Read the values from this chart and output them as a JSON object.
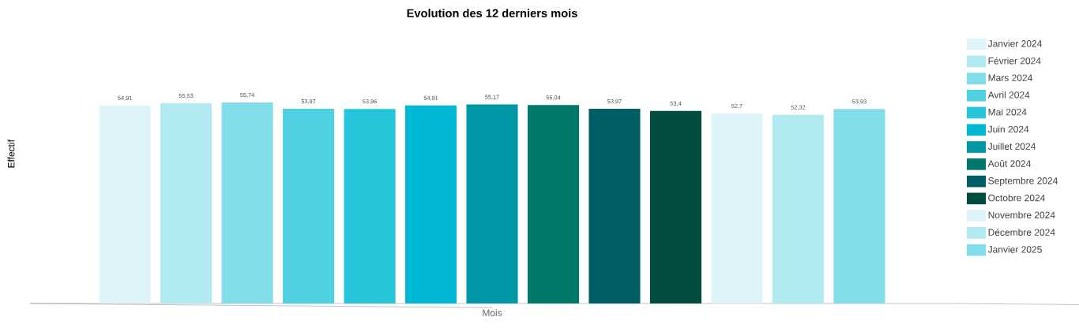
{
  "chart_data": {
    "type": "bar",
    "title": "Evolution des 12 derniers mois",
    "xlabel": "Mois",
    "ylabel": "Effectif",
    "categories": [
      null
    ],
    "series": [
      {
        "name": "Janvier 2024",
        "color": "#dff4f8",
        "values": [
          54.91
        ],
        "value_labels": [
          "54,91"
        ]
      },
      {
        "name": "Février 2024",
        "color": "#b2eaf2",
        "values": [
          55.53
        ],
        "value_labels": [
          "55,53"
        ]
      },
      {
        "name": "Mars 2024",
        "color": "#80dde9",
        "values": [
          55.74
        ],
        "value_labels": [
          "55,74"
        ]
      },
      {
        "name": "Avril 2024",
        "color": "#4fd1e2",
        "values": [
          53.97
        ],
        "value_labels": [
          "53,97"
        ]
      },
      {
        "name": "Mai 2024",
        "color": "#26c5da",
        "values": [
          53.96
        ],
        "value_labels": [
          "53,96"
        ]
      },
      {
        "name": "Juin 2024",
        "color": "#00b8d4",
        "values": [
          54.91
        ],
        "value_labels": [
          "54,91"
        ]
      },
      {
        "name": "Juillet 2024",
        "color": "#0097a7",
        "values": [
          55.17
        ],
        "value_labels": [
          "55,17"
        ]
      },
      {
        "name": "Août 2024",
        "color": "#00796b",
        "values": [
          55.04
        ],
        "value_labels": [
          "55,04"
        ]
      },
      {
        "name": "Septembre 2024",
        "color": "#005f64",
        "values": [
          53.97
        ],
        "value_labels": [
          "53,97"
        ]
      },
      {
        "name": "Octobre 2024",
        "color": "#004d40",
        "values": [
          53.4
        ],
        "value_labels": [
          "53,4"
        ]
      },
      {
        "name": "Novembre 2024",
        "color": "#dff4f8",
        "values": [
          52.7
        ],
        "value_labels": [
          "52,7"
        ]
      },
      {
        "name": "Décembre 2024",
        "color": "#b2eaf2",
        "values": [
          52.32
        ],
        "value_labels": [
          "52,32"
        ]
      },
      {
        "name": "Janvier 2025",
        "color": "#80dde9",
        "values": [
          53.93
        ],
        "value_labels": [
          "53,93"
        ]
      }
    ],
    "legend": "right",
    "tick_labels": false
  }
}
